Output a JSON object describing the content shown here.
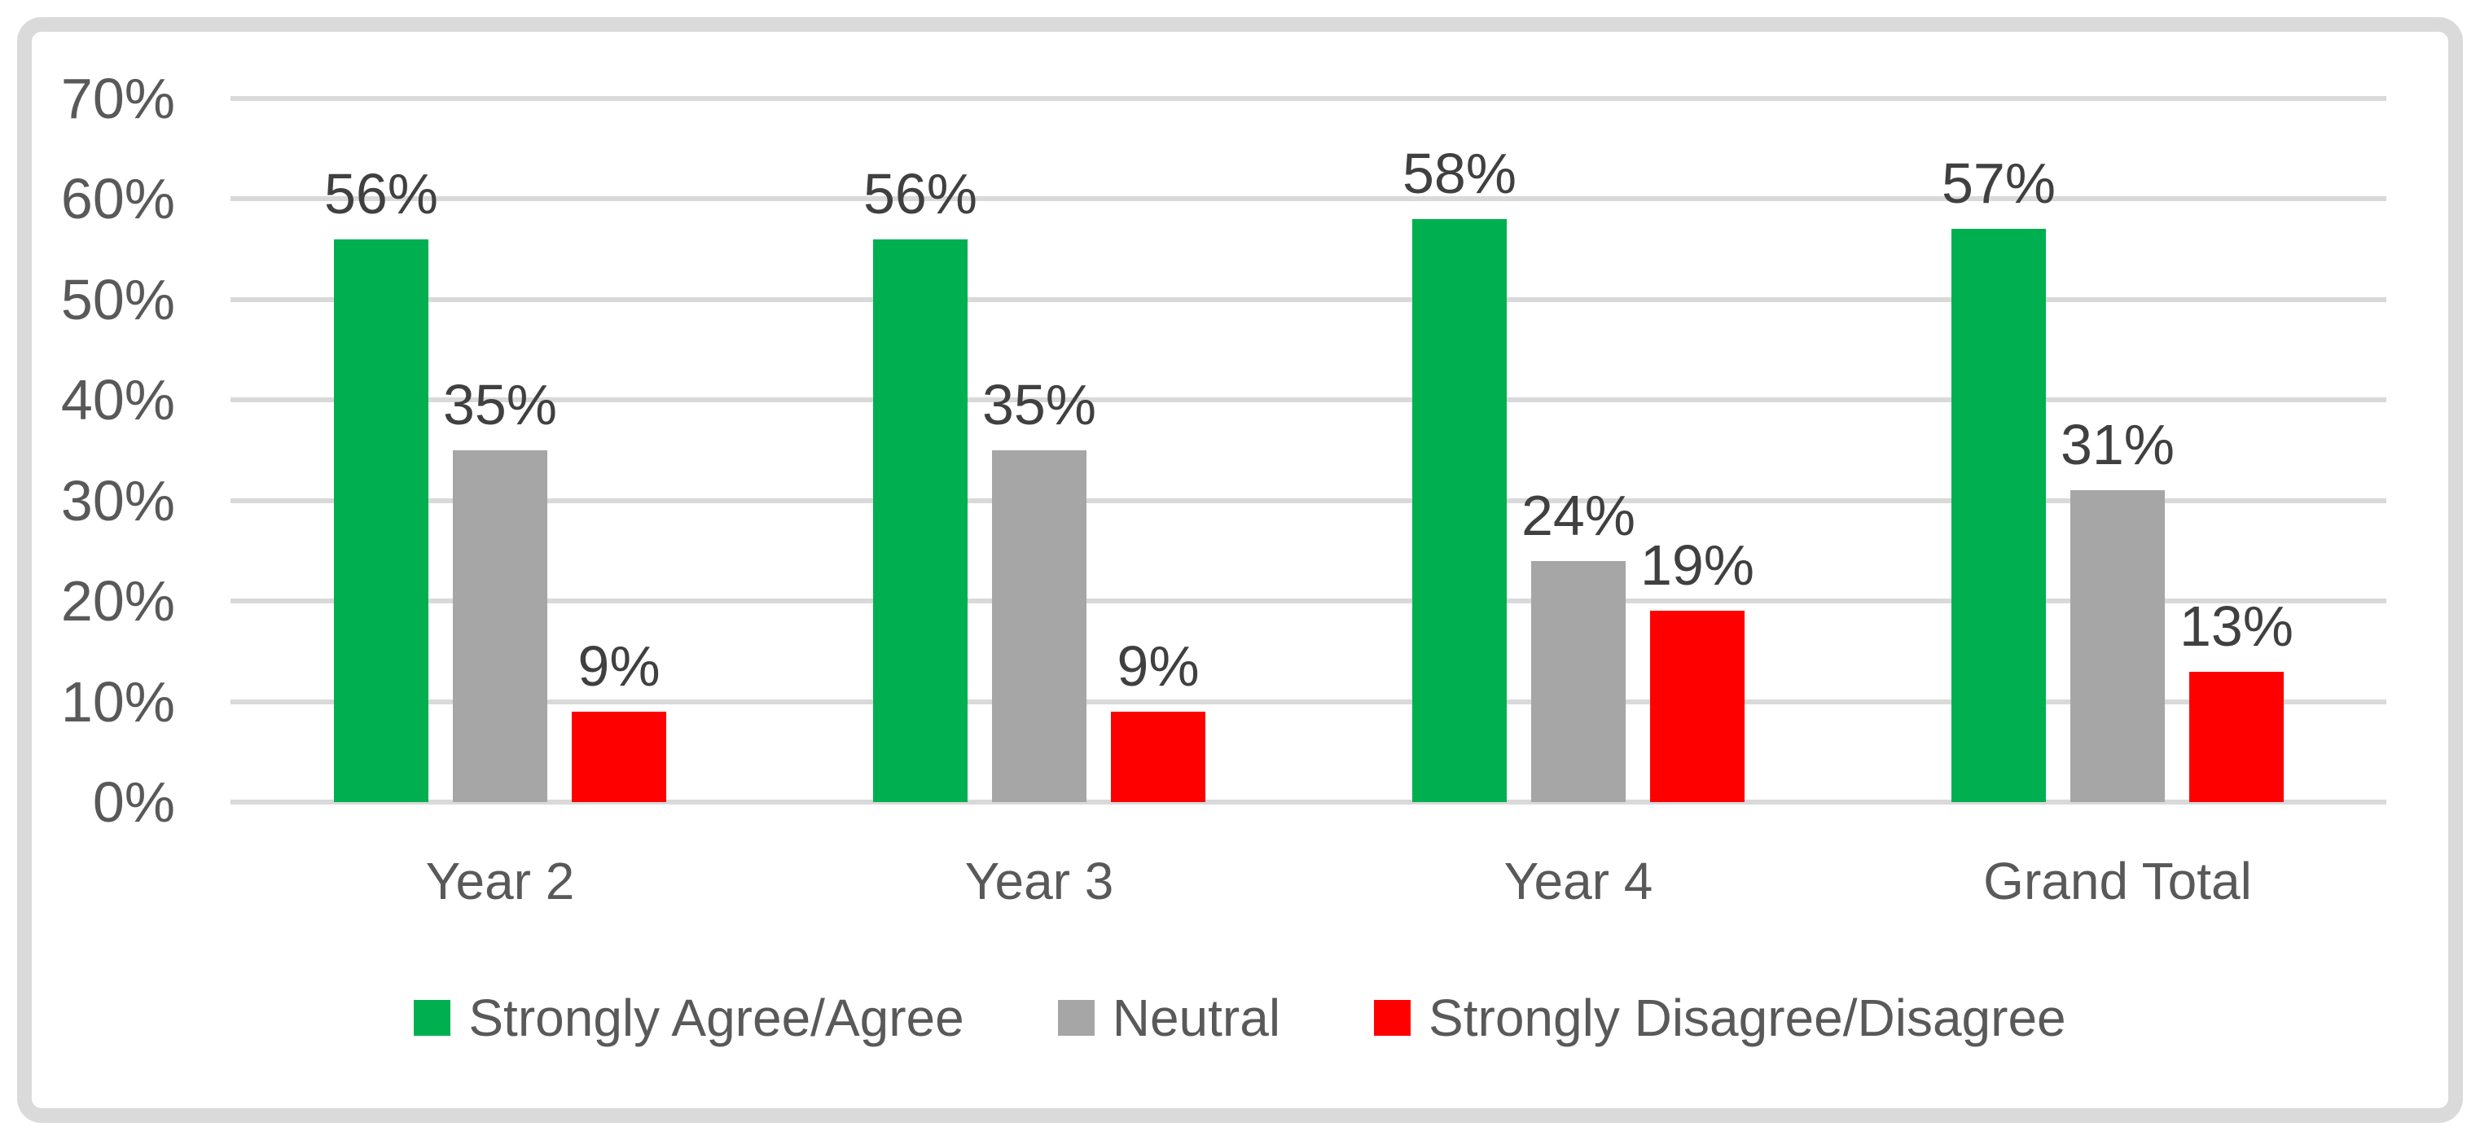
{
  "chart_data": {
    "type": "bar",
    "title": "",
    "categories": [
      "Year 2",
      "Year 3",
      "Year 4",
      "Grand Total"
    ],
    "series": [
      {
        "name": "Strongly Agree/Agree",
        "color": "#00b050",
        "values": [
          56,
          56,
          58,
          57
        ],
        "labels": [
          "56%",
          "56%",
          "58%",
          "57%"
        ]
      },
      {
        "name": "Neutral",
        "color": "#a6a6a6",
        "values": [
          35,
          35,
          24,
          31
        ],
        "labels": [
          "35%",
          "35%",
          "24%",
          "31%"
        ]
      },
      {
        "name": "Strongly Disagree/Disagree",
        "color": "#ff0000",
        "values": [
          9,
          9,
          19,
          13
        ],
        "labels": [
          "9%",
          "9%",
          "19%",
          "13%"
        ]
      }
    ],
    "y_axis": {
      "min": 0,
      "max": 70,
      "unit": "%",
      "ticks": [
        "0%",
        "10%",
        "20%",
        "30%",
        "40%",
        "50%",
        "60%",
        "70%"
      ]
    },
    "grid": true,
    "legend_position": "bottom",
    "colors": {
      "gridline": "#d9d9d9",
      "tick_text": "#595959",
      "data_label_text": "#404040",
      "frame_border": "#dadada",
      "background": "#ffffff"
    }
  }
}
